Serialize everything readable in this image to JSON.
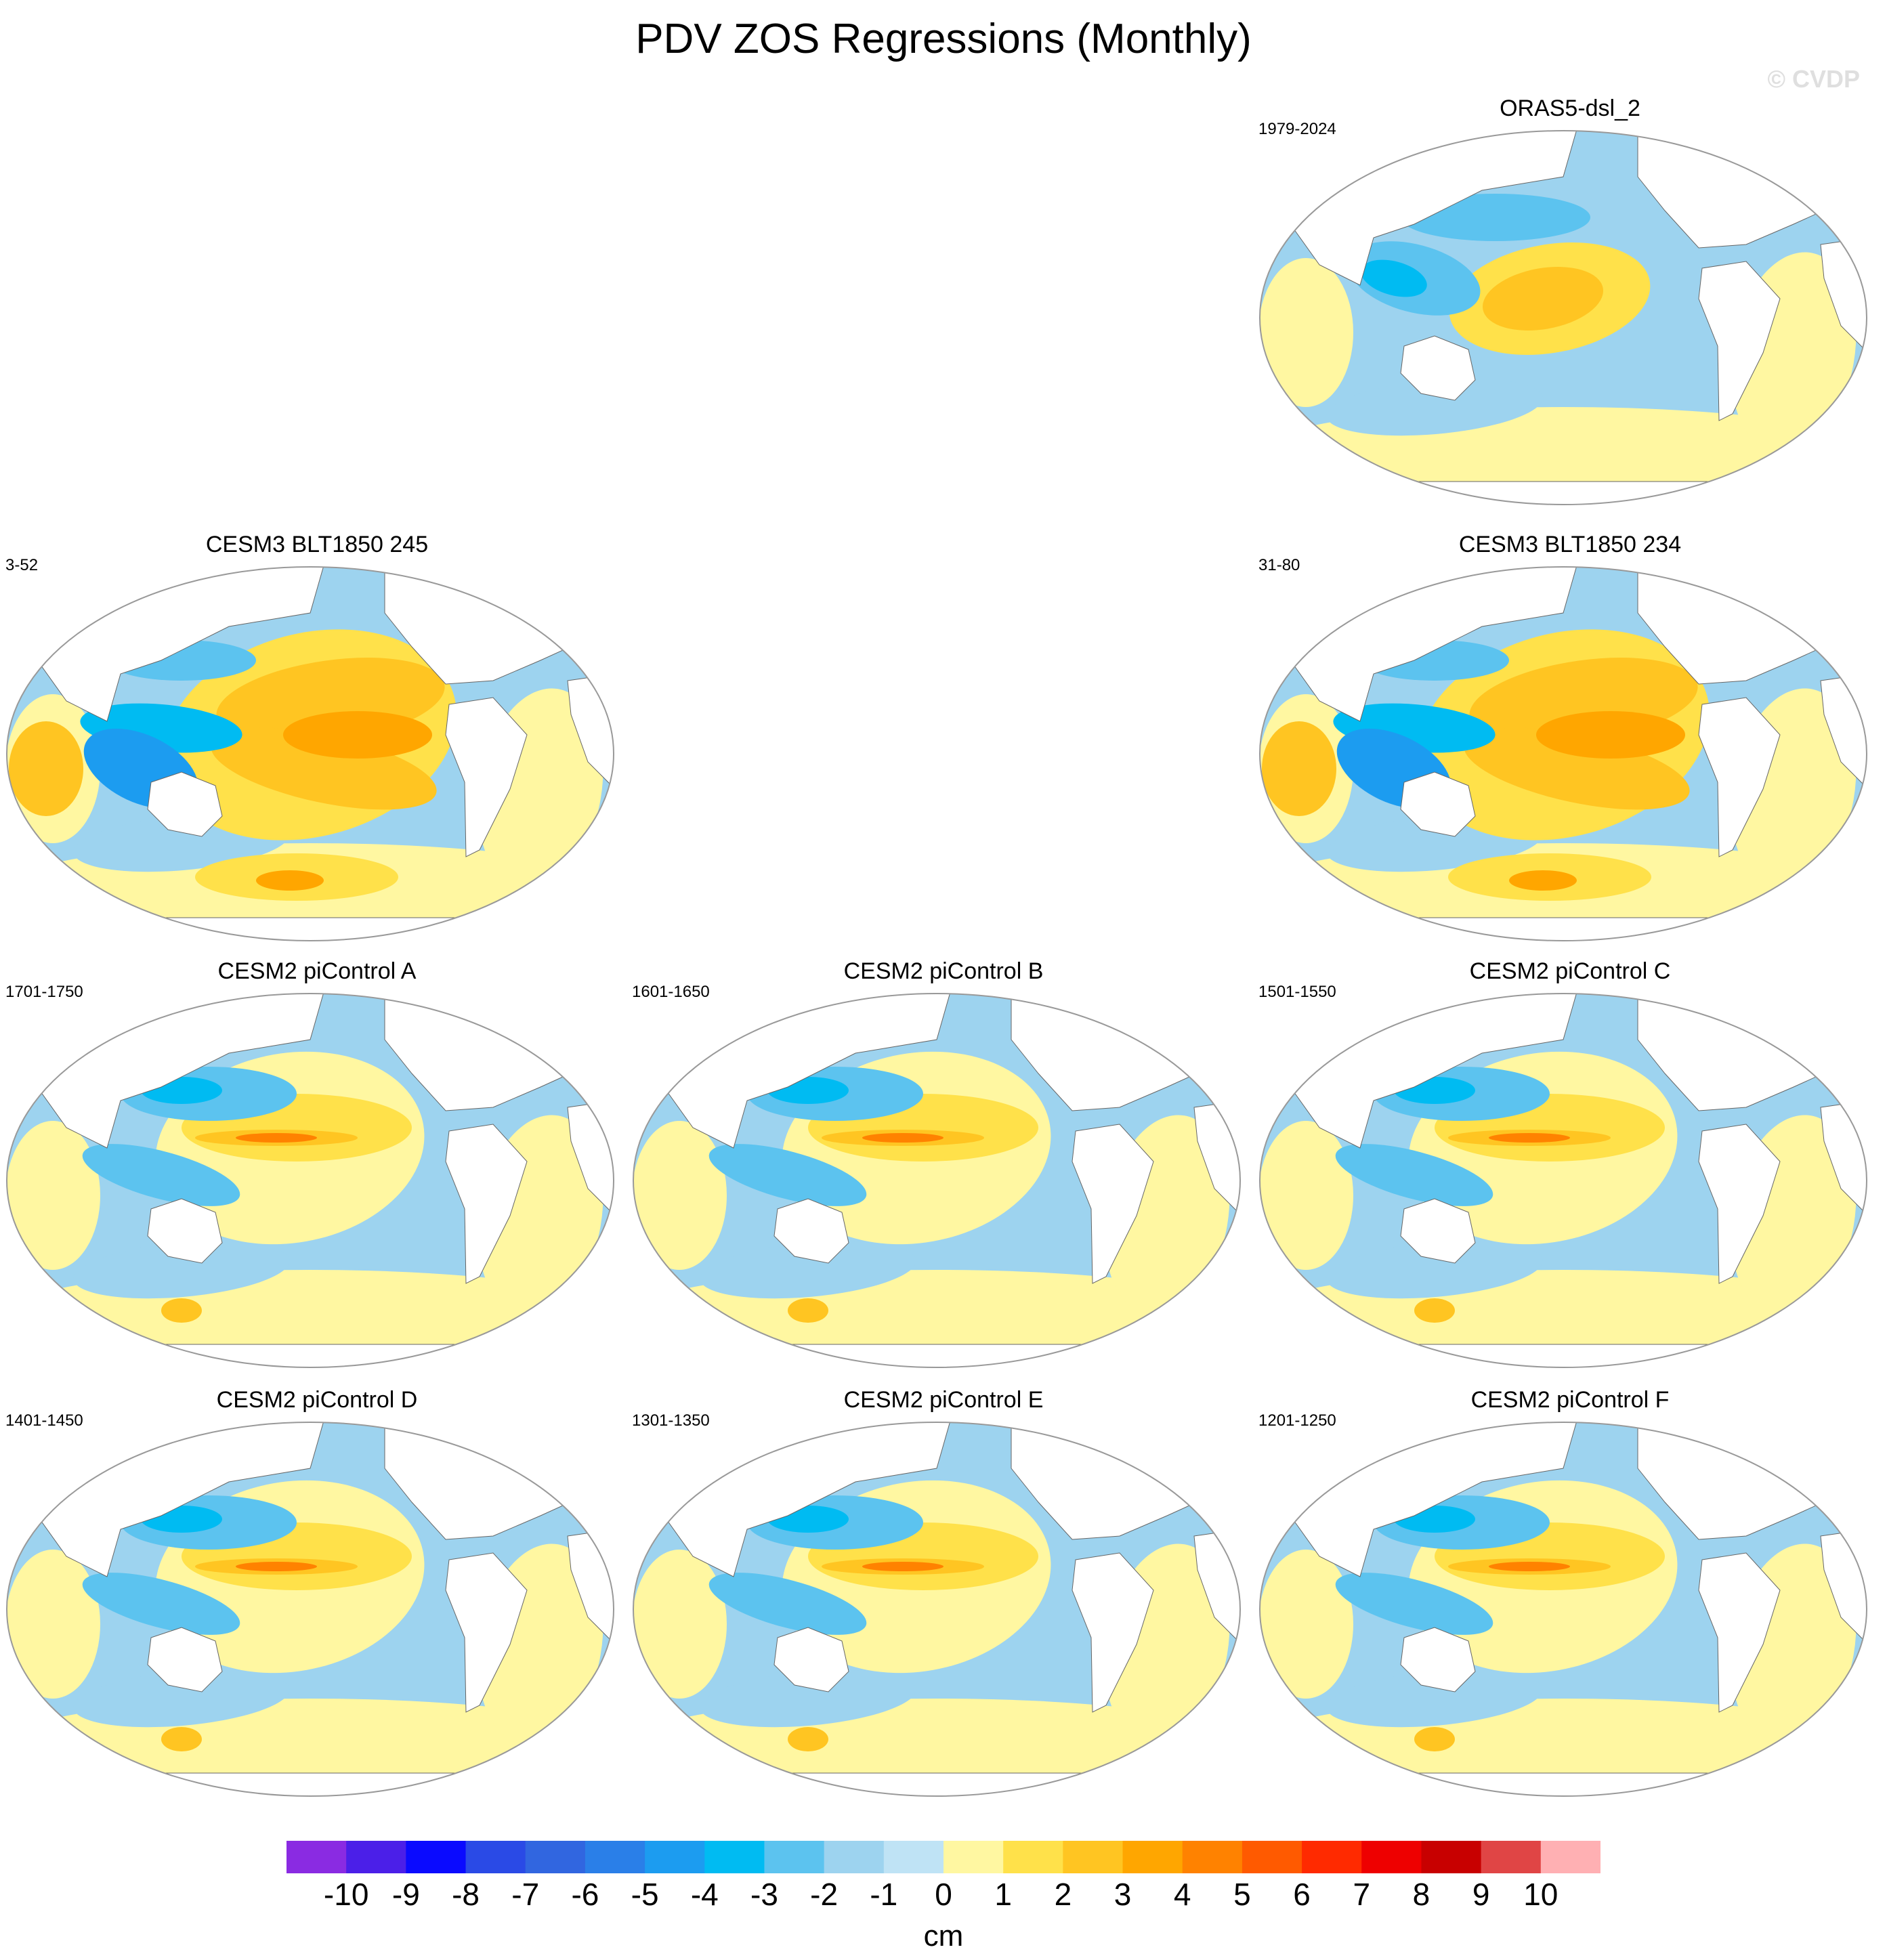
{
  "title": "PDV ZOS Regressions (Monthly)",
  "watermark": "© CVDP",
  "colorbar": {
    "units": "cm",
    "labels": [
      "-10",
      "-9",
      "-8",
      "-7",
      "-6",
      "-5",
      "-4",
      "-3",
      "-2",
      "-1",
      "0",
      "1",
      "2",
      "3",
      "4",
      "5",
      "6",
      "7",
      "8",
      "9",
      "10"
    ],
    "colors": [
      "#8a2be2",
      "#4b1fe8",
      "#0a0aff",
      "#2a4ae6",
      "#3166e0",
      "#2a7fe8",
      "#1c9cf0",
      "#00bbf2",
      "#5cc3ef",
      "#9dd3ef",
      "#bfe3f5",
      "#fff7a1",
      "#ffe14a",
      "#ffc522",
      "#ffa600",
      "#ff8200",
      "#ff5a00",
      "#ff2a00",
      "#ee0000",
      "#c80000",
      "#e04545",
      "#ffb0b3"
    ]
  },
  "panels": [
    {
      "title": "ORAS5-dsl_2",
      "period": "1979-2024",
      "variant": "obs"
    },
    {
      "title": "CESM3 BLT1850 245",
      "period": "3-52",
      "variant": "strong"
    },
    {
      "title": "CESM3 BLT1850 234",
      "period": "31-80",
      "variant": "strong"
    },
    {
      "title": "CESM2 piControl A",
      "period": "1701-1750",
      "variant": "pi"
    },
    {
      "title": "CESM2 piControl B",
      "period": "1601-1650",
      "variant": "pi"
    },
    {
      "title": "CESM2 piControl C",
      "period": "1501-1550",
      "variant": "pi"
    },
    {
      "title": "CESM2 piControl D",
      "period": "1401-1450",
      "variant": "pi"
    },
    {
      "title": "CESM2 piControl E",
      "period": "1301-1350",
      "variant": "pi"
    },
    {
      "title": "CESM2 piControl F",
      "period": "1201-1250",
      "variant": "pi"
    }
  ]
}
